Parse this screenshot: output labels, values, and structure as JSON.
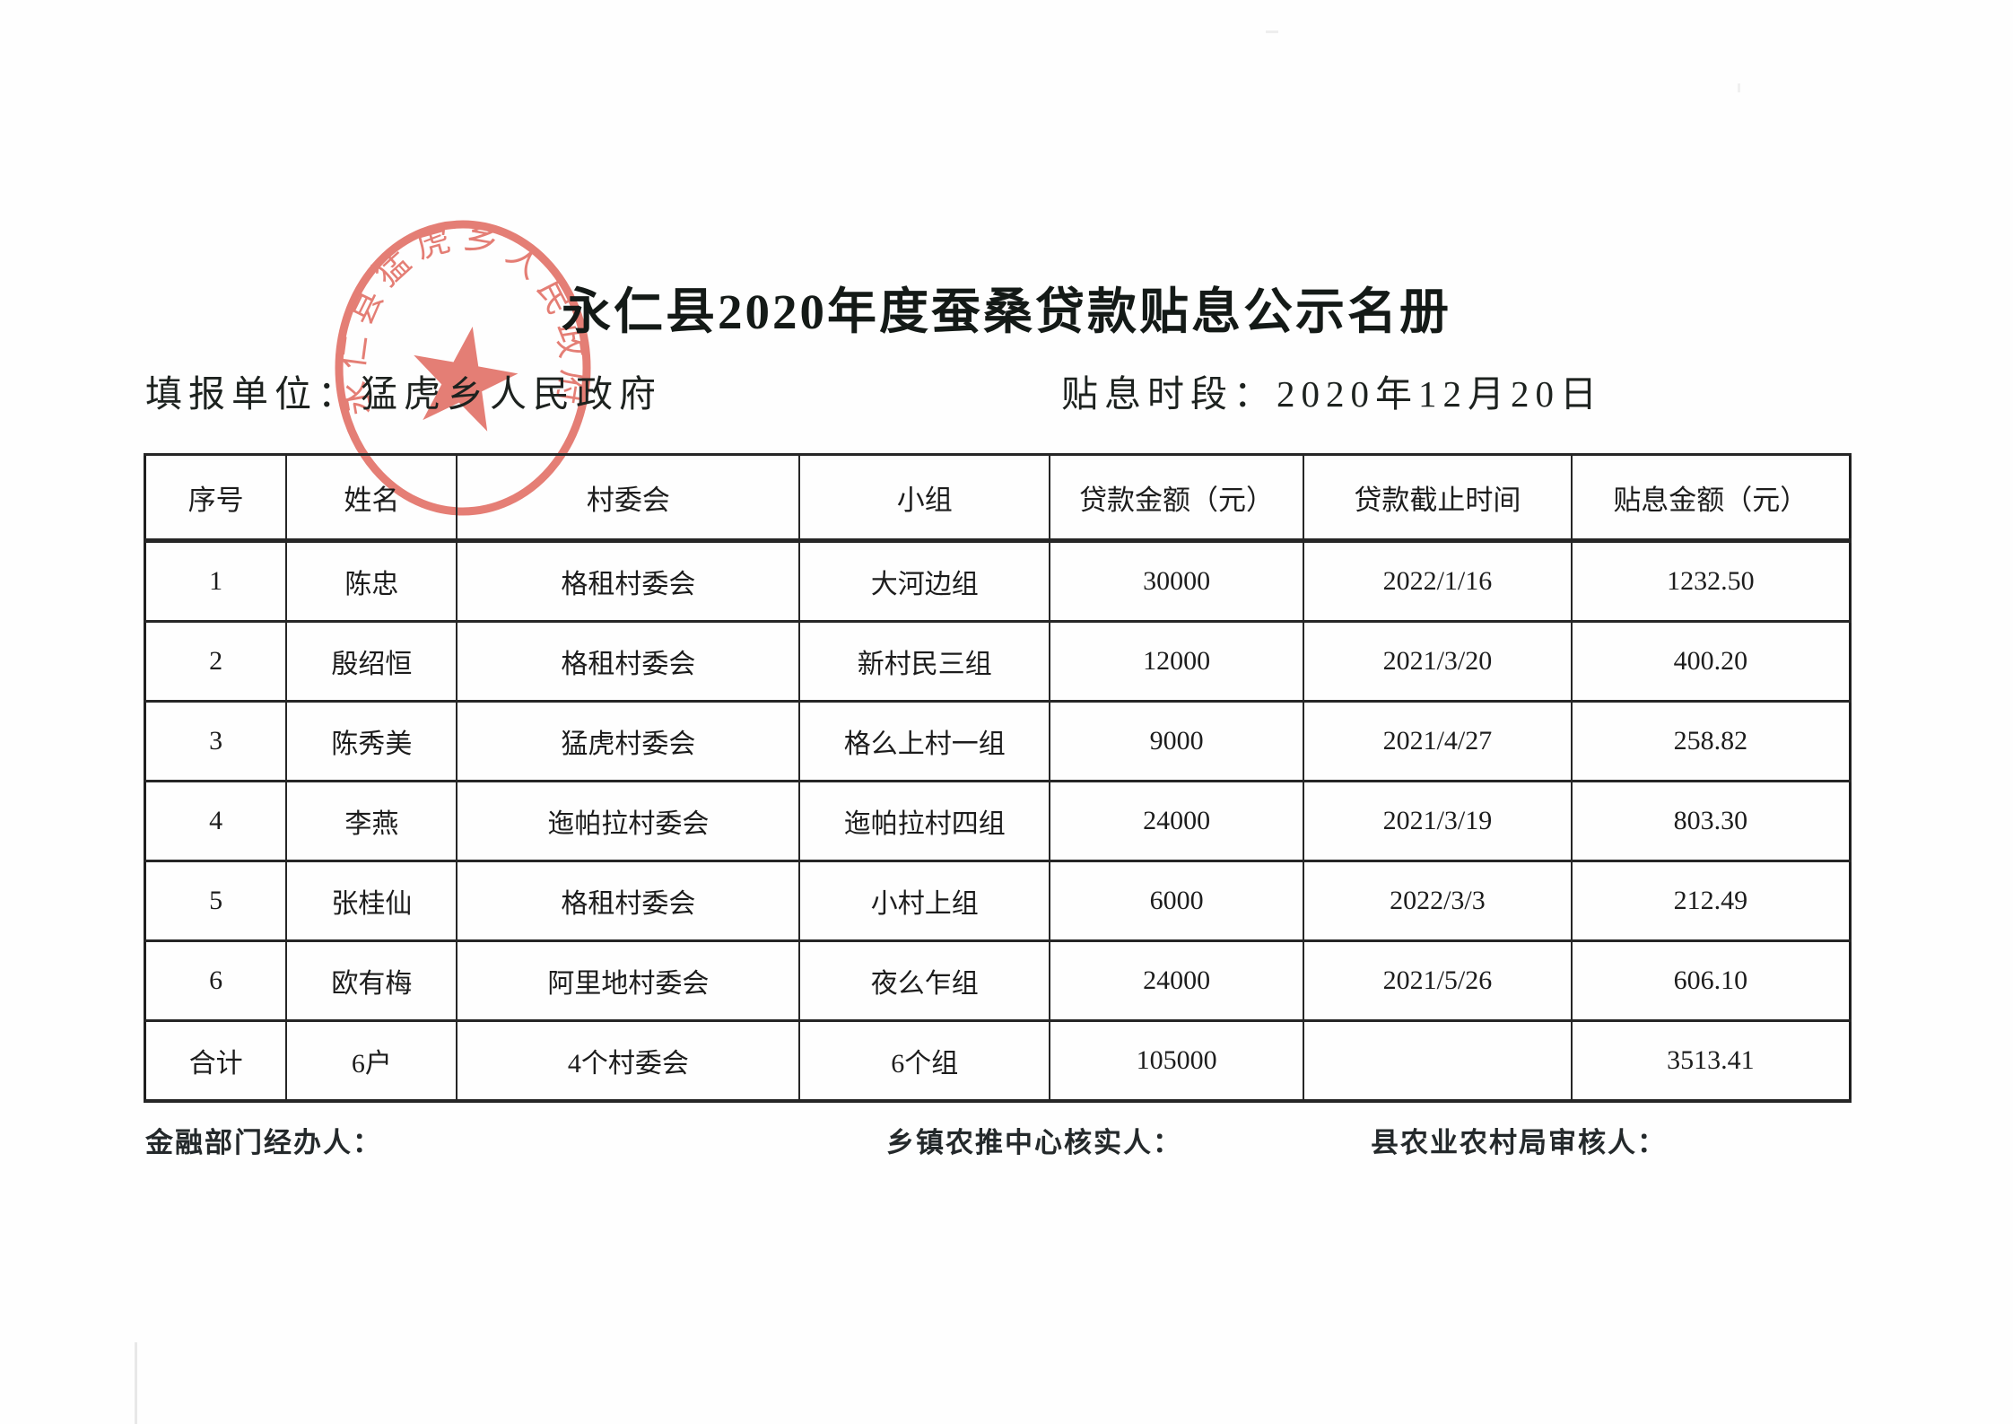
{
  "doc": {
    "title": "永仁县2020年度蚕桑贷款贴息公示名册",
    "report_unit_label": "填报单位：",
    "report_unit_value": "猛虎乡人民政府",
    "period_label": "贴息时段：",
    "period_value": "2020年12月20日"
  },
  "seal": {
    "text": "永仁县猛虎乡人民政府",
    "color": "#dd5347"
  },
  "table": {
    "headers": [
      "序号",
      "姓名",
      "村委会",
      "小组",
      "贷款金额（元）",
      "贷款截止时间",
      "贴息金额（元）"
    ],
    "rows": [
      [
        "1",
        "陈忠",
        "格租村委会",
        "大河边组",
        "30000",
        "2022/1/16",
        "1232.50"
      ],
      [
        "2",
        "殷绍恒",
        "格租村委会",
        "新村民三组",
        "12000",
        "2021/3/20",
        "400.20"
      ],
      [
        "3",
        "陈秀美",
        "猛虎村委会",
        "格么上村一组",
        "9000",
        "2021/4/27",
        "258.82"
      ],
      [
        "4",
        "李燕",
        "迤帕拉村委会",
        "迤帕拉村四组",
        "24000",
        "2021/3/19",
        "803.30"
      ],
      [
        "5",
        "张桂仙",
        "格租村委会",
        "小村上组",
        "6000",
        "2022/3/3",
        "212.49"
      ],
      [
        "6",
        "欧有梅",
        "阿里地村委会",
        "夜么乍组",
        "24000",
        "2021/5/26",
        "606.10"
      ]
    ],
    "total_row": [
      "合计",
      "6户",
      "4个村委会",
      "6个组",
      "105000",
      "",
      "3513.41"
    ]
  },
  "footer": {
    "signers": [
      "金融部门经办人：",
      "乡镇农推中心核实人：",
      "县农业农村局审核人："
    ]
  }
}
